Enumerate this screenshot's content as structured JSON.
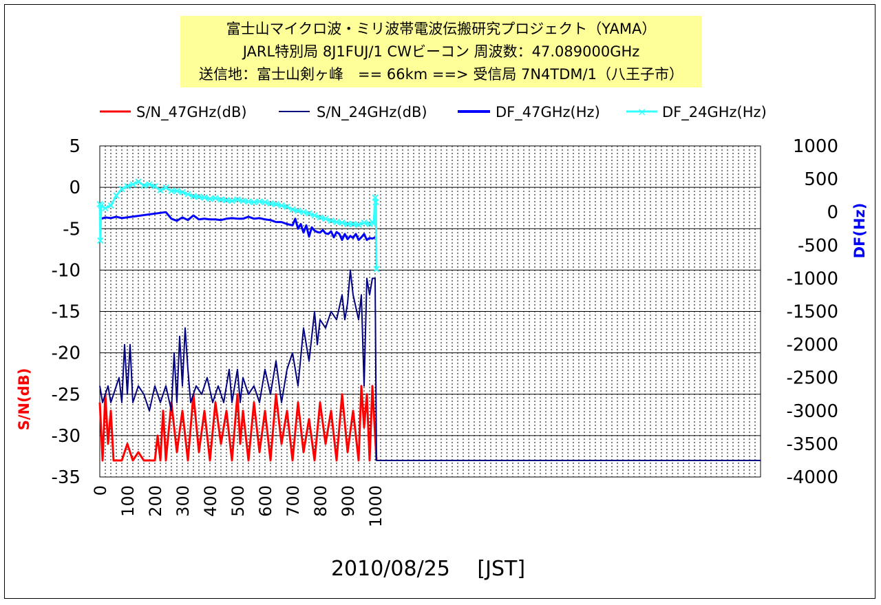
{
  "title_lines": [
    "富士山マイクロ波・ミリ波帯電波伝搬研究プロジェクト（YAMA）",
    "JARL特別局 8J1FUJ/1 CWビーコン 周波数：47.089000GHz",
    "送信地：富士山剣ヶ峰　== 66km ==> 受信局 7N4TDM/1（八王子市）"
  ],
  "chart_data": {
    "type": "line",
    "xlabel": "2010/08/25　 [JST]",
    "ylabel_left": "S/N(dB)",
    "ylabel_right": "DF(Hz)",
    "xlim": [
      0,
      2400
    ],
    "ylim_left": [
      -35,
      5
    ],
    "ylim_right": [
      -4000,
      1000
    ],
    "x_ticks": [
      "0",
      "100",
      "200",
      "300",
      "400",
      "500",
      "600",
      "700",
      "800",
      "900",
      "1000"
    ],
    "y_ticks_left": [
      "5",
      "0",
      "-5",
      "-10",
      "-15",
      "-20",
      "-25",
      "-30",
      "-35"
    ],
    "y_ticks_right": [
      "1000",
      "500",
      "0",
      "-500",
      "-1000",
      "-1500",
      "-2000",
      "-2500",
      "-3000",
      "-3500",
      "-4000"
    ],
    "grid": true,
    "legend_position": "top",
    "colors": {
      "sn47": "#ff0000",
      "sn24": "#000080",
      "df47": "#0000ff",
      "df24": "#33ffff"
    },
    "series": [
      {
        "name": "S/N_47GHz(dB)",
        "axis": "left",
        "points": [
          [
            0,
            -26
          ],
          [
            10,
            -33
          ],
          [
            20,
            -25
          ],
          [
            30,
            -31
          ],
          [
            40,
            -27
          ],
          [
            50,
            -33
          ],
          [
            60,
            -33
          ],
          [
            80,
            -33
          ],
          [
            100,
            -31
          ],
          [
            120,
            -33
          ],
          [
            140,
            -32
          ],
          [
            160,
            -33
          ],
          [
            180,
            -33
          ],
          [
            200,
            -33
          ],
          [
            210,
            -30
          ],
          [
            220,
            -33
          ],
          [
            230,
            -27
          ],
          [
            240,
            -33
          ],
          [
            260,
            -26
          ],
          [
            280,
            -32
          ],
          [
            300,
            -27
          ],
          [
            320,
            -33
          ],
          [
            340,
            -25
          ],
          [
            360,
            -32
          ],
          [
            380,
            -27
          ],
          [
            400,
            -33
          ],
          [
            420,
            -26
          ],
          [
            440,
            -31
          ],
          [
            460,
            -27
          ],
          [
            480,
            -33
          ],
          [
            500,
            -25
          ],
          [
            510,
            -31
          ],
          [
            520,
            -27
          ],
          [
            540,
            -33
          ],
          [
            560,
            -26
          ],
          [
            580,
            -32
          ],
          [
            600,
            -27
          ],
          [
            620,
            -33
          ],
          [
            640,
            -25
          ],
          [
            660,
            -31
          ],
          [
            680,
            -27
          ],
          [
            700,
            -33
          ],
          [
            720,
            -26
          ],
          [
            740,
            -32
          ],
          [
            760,
            -28
          ],
          [
            780,
            -33
          ],
          [
            800,
            -26
          ],
          [
            820,
            -31
          ],
          [
            840,
            -27
          ],
          [
            860,
            -33
          ],
          [
            880,
            -25
          ],
          [
            900,
            -32
          ],
          [
            920,
            -27
          ],
          [
            940,
            -33
          ],
          [
            950,
            -24
          ],
          [
            960,
            -29
          ],
          [
            970,
            -25
          ],
          [
            980,
            -33
          ],
          [
            990,
            -24
          ],
          [
            1000,
            -30
          ],
          [
            1005,
            -33
          ]
        ]
      },
      {
        "name": "S/N_24GHz(dB)",
        "axis": "left",
        "points": [
          [
            0,
            -24
          ],
          [
            10,
            -26
          ],
          [
            20,
            -25
          ],
          [
            30,
            -24
          ],
          [
            40,
            -26
          ],
          [
            50,
            -25
          ],
          [
            60,
            -24
          ],
          [
            70,
            -23
          ],
          [
            80,
            -26
          ],
          [
            90,
            -19
          ],
          [
            100,
            -25
          ],
          [
            110,
            -19
          ],
          [
            120,
            -26
          ],
          [
            140,
            -24
          ],
          [
            160,
            -25
          ],
          [
            180,
            -27
          ],
          [
            200,
            -24
          ],
          [
            220,
            -26
          ],
          [
            240,
            -24
          ],
          [
            260,
            -27
          ],
          [
            270,
            -20
          ],
          [
            280,
            -26
          ],
          [
            290,
            -18
          ],
          [
            300,
            -24
          ],
          [
            310,
            -17
          ],
          [
            320,
            -22
          ],
          [
            330,
            -26
          ],
          [
            350,
            -24
          ],
          [
            370,
            -25
          ],
          [
            390,
            -23
          ],
          [
            410,
            -26
          ],
          [
            430,
            -24
          ],
          [
            450,
            -26
          ],
          [
            470,
            -22
          ],
          [
            480,
            -26
          ],
          [
            490,
            -24
          ],
          [
            500,
            -22
          ],
          [
            510,
            -26
          ],
          [
            520,
            -23
          ],
          [
            540,
            -25
          ],
          [
            560,
            -24
          ],
          [
            580,
            -26
          ],
          [
            600,
            -22
          ],
          [
            620,
            -25
          ],
          [
            640,
            -21
          ],
          [
            660,
            -26
          ],
          [
            680,
            -22
          ],
          [
            700,
            -20
          ],
          [
            720,
            -24
          ],
          [
            740,
            -17
          ],
          [
            760,
            -21
          ],
          [
            780,
            -15
          ],
          [
            790,
            -19
          ],
          [
            800,
            -16
          ],
          [
            820,
            -17
          ],
          [
            840,
            -15
          ],
          [
            860,
            -16
          ],
          [
            880,
            -13
          ],
          [
            890,
            -16
          ],
          [
            900,
            -14
          ],
          [
            910,
            -10
          ],
          [
            920,
            -13
          ],
          [
            940,
            -16
          ],
          [
            950,
            -13
          ],
          [
            960,
            -24
          ],
          [
            970,
            -11
          ],
          [
            980,
            -13
          ],
          [
            990,
            -11
          ],
          [
            1000,
            -11
          ],
          [
            1005,
            -33
          ],
          [
            2400,
            -33
          ]
        ]
      },
      {
        "name": "DF_47GHz(Hz)",
        "axis": "right",
        "points": [
          [
            5,
            -100
          ],
          [
            20,
            -80
          ],
          [
            40,
            -90
          ],
          [
            60,
            -70
          ],
          [
            80,
            -90
          ],
          [
            240,
            0
          ],
          [
            260,
            -100
          ],
          [
            280,
            -130
          ],
          [
            300,
            -80
          ],
          [
            320,
            -120
          ],
          [
            340,
            -50
          ],
          [
            360,
            -110
          ],
          [
            380,
            -100
          ],
          [
            400,
            -110
          ],
          [
            420,
            -110
          ],
          [
            440,
            -120
          ],
          [
            460,
            -100
          ],
          [
            480,
            -90
          ],
          [
            500,
            -100
          ],
          [
            520,
            -100
          ],
          [
            540,
            -70
          ],
          [
            560,
            -100
          ],
          [
            580,
            -90
          ],
          [
            600,
            -110
          ],
          [
            620,
            -120
          ],
          [
            640,
            -150
          ],
          [
            660,
            -150
          ],
          [
            680,
            -180
          ],
          [
            700,
            -200
          ],
          [
            710,
            -100
          ],
          [
            720,
            -250
          ],
          [
            730,
            -180
          ],
          [
            740,
            -310
          ],
          [
            750,
            -200
          ],
          [
            760,
            -370
          ],
          [
            770,
            -230
          ],
          [
            780,
            -280
          ],
          [
            790,
            -300
          ],
          [
            800,
            -310
          ],
          [
            810,
            -270
          ],
          [
            820,
            -320
          ],
          [
            830,
            -330
          ],
          [
            840,
            -290
          ],
          [
            850,
            -380
          ],
          [
            860,
            -300
          ],
          [
            870,
            -330
          ],
          [
            880,
            -420
          ],
          [
            890,
            -330
          ],
          [
            900,
            -410
          ],
          [
            910,
            -360
          ],
          [
            920,
            -390
          ],
          [
            930,
            -330
          ],
          [
            940,
            -420
          ],
          [
            950,
            -380
          ],
          [
            960,
            -330
          ],
          [
            970,
            -420
          ],
          [
            980,
            -390
          ],
          [
            990,
            -400
          ],
          [
            1000,
            -380
          ]
        ]
      },
      {
        "name": "DF_24GHz(Hz)",
        "axis": "right",
        "points": [
          [
            0,
            120
          ],
          [
            2,
            -430
          ],
          [
            5,
            100
          ],
          [
            20,
            60
          ],
          [
            40,
            100
          ],
          [
            60,
            250
          ],
          [
            80,
            350
          ],
          [
            100,
            390
          ],
          [
            120,
            420
          ],
          [
            140,
            460
          ],
          [
            160,
            400
          ],
          [
            180,
            420
          ],
          [
            200,
            390
          ],
          [
            220,
            330
          ],
          [
            240,
            370
          ],
          [
            260,
            320
          ],
          [
            280,
            320
          ],
          [
            300,
            300
          ],
          [
            320,
            270
          ],
          [
            340,
            240
          ],
          [
            360,
            230
          ],
          [
            380,
            220
          ],
          [
            400,
            200
          ],
          [
            420,
            210
          ],
          [
            440,
            190
          ],
          [
            460,
            180
          ],
          [
            480,
            170
          ],
          [
            500,
            190
          ],
          [
            520,
            170
          ],
          [
            540,
            160
          ],
          [
            560,
            150
          ],
          [
            580,
            160
          ],
          [
            600,
            150
          ],
          [
            620,
            130
          ],
          [
            640,
            120
          ],
          [
            660,
            100
          ],
          [
            680,
            80
          ],
          [
            700,
            40
          ],
          [
            720,
            20
          ],
          [
            740,
            0
          ],
          [
            760,
            -20
          ],
          [
            780,
            -50
          ],
          [
            800,
            -80
          ],
          [
            820,
            -100
          ],
          [
            840,
            -130
          ],
          [
            860,
            -150
          ],
          [
            880,
            -160
          ],
          [
            900,
            -180
          ],
          [
            920,
            -180
          ],
          [
            940,
            -190
          ],
          [
            960,
            -160
          ],
          [
            980,
            -180
          ],
          [
            990,
            -150
          ],
          [
            995,
            -170
          ],
          [
            1000,
            220
          ],
          [
            1003,
            150
          ],
          [
            1005,
            -860
          ]
        ]
      }
    ]
  }
}
